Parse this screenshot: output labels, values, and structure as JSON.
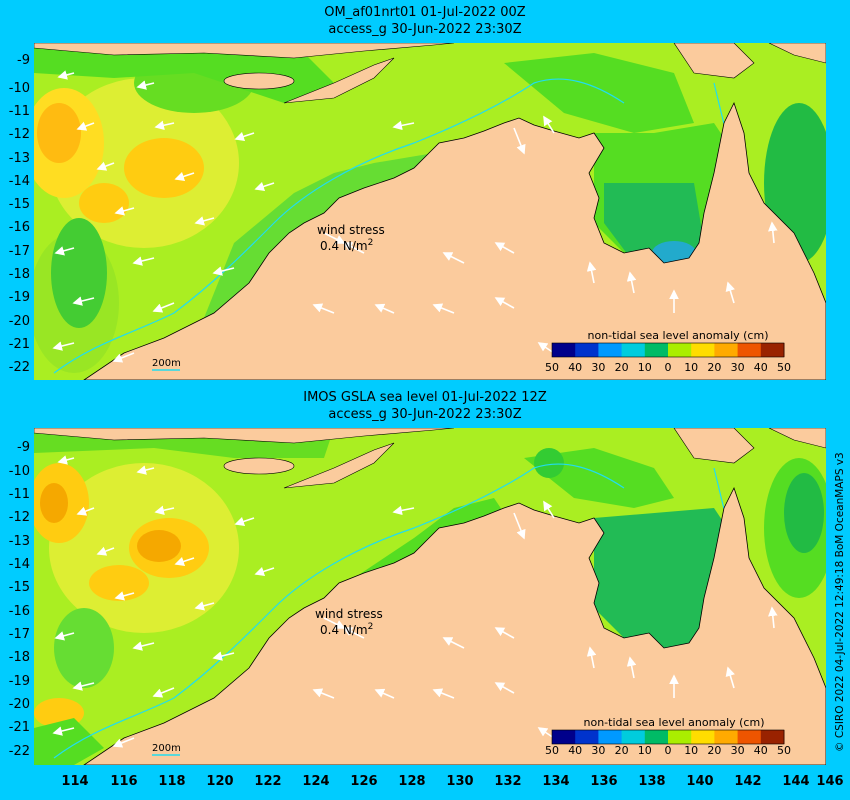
{
  "panels": [
    {
      "title_line1": "OM_af01nrt01 01-Jul-2022 00Z",
      "title_line2": "access_g 30-Jun-2022 23:30Z",
      "wind_label": "wind stress",
      "wind_scale": "0.4 N/m",
      "wind_scale_exp": "2",
      "depth_label": "200m",
      "colorbar_title": "non-tidal sea level anomaly (cm)",
      "colorbar_ticks": [
        "50",
        "40",
        "30",
        "20",
        "10",
        "0",
        "10",
        "20",
        "30",
        "40",
        "50"
      ]
    },
    {
      "title_line1": "IMOS GSLA sea level  01-Jul-2022 12Z",
      "title_line2": "access_g 30-Jun-2022 23:30Z",
      "wind_label": "wind stress",
      "wind_scale": "0.4 N/m",
      "wind_scale_exp": "2",
      "depth_label": "200m",
      "colorbar_title": "non-tidal sea level anomaly (cm)",
      "colorbar_ticks": [
        "50",
        "40",
        "30",
        "20",
        "10",
        "0",
        "10",
        "20",
        "30",
        "40",
        "50"
      ]
    }
  ],
  "latitude_labels": [
    "-9",
    "-10",
    "-11",
    "-12",
    "-13",
    "-14",
    "-15",
    "-16",
    "-17",
    "-18",
    "-19",
    "-20",
    "-21",
    "-22"
  ],
  "longitude_labels": [
    "114",
    "116",
    "118",
    "120",
    "122",
    "124",
    "126",
    "128",
    "130",
    "132",
    "134",
    "136",
    "138",
    "140",
    "142",
    "144",
    "146"
  ],
  "credit": "© CSIRO 2022   04-Jul-2022 12:49:18 BoM OceanMAPS v3",
  "colors": {
    "background": "#00ccff",
    "land": "#fbcb9d",
    "sea_yellow_green": "#aaee22",
    "sea_green": "#55dd22",
    "sea_dark_green": "#11bb44",
    "sea_orange": "#ffcc00",
    "sea_amber": "#f5a800"
  }
}
